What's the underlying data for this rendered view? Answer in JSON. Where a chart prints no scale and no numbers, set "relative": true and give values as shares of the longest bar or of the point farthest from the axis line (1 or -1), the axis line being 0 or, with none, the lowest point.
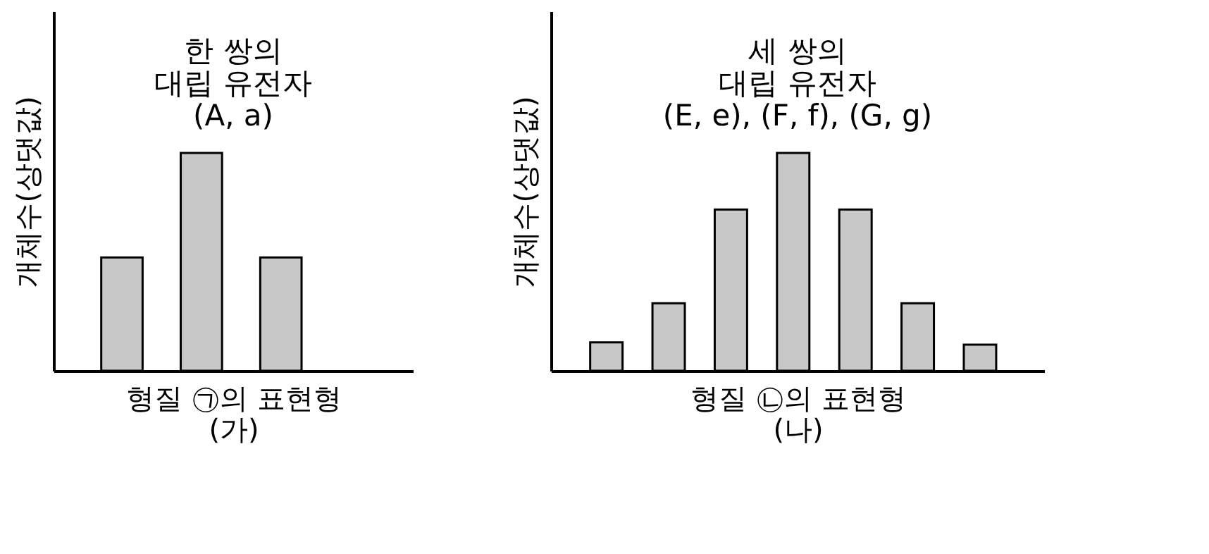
{
  "chart_data": [
    {
      "type": "bar",
      "title": "한 쌍의\n대립 유전자\n(A, a)",
      "ylabel": "개체수(상댓값)",
      "xlabel": "형질 ㉠의 표현형",
      "annotations": [
        "(가)"
      ],
      "relative": true,
      "tick_labels": false,
      "categories": [
        null,
        null,
        null
      ],
      "series": [
        {
          "color": "#c8c8c8",
          "values": [
            0.52,
            1,
            0.52
          ]
        }
      ]
    },
    {
      "type": "bar",
      "title": "세 쌍의\n대립 유전자\n(E, e), (F, f), (G, g)",
      "ylabel": "개체수(상댓값)",
      "xlabel": "형질 ㉡의 표현형",
      "annotations": [
        "(나)"
      ],
      "relative": true,
      "tick_labels": false,
      "categories": [
        null,
        null,
        null,
        null,
        null,
        null,
        null
      ],
      "series": [
        {
          "color": "#c8c8c8",
          "values": [
            0.13,
            0.31,
            0.74,
            1,
            0.74,
            0.31,
            0.12
          ]
        }
      ]
    }
  ]
}
